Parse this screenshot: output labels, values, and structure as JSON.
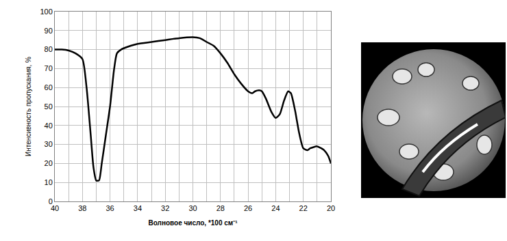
{
  "chart_data": {
    "type": "line",
    "xlabel": "Волновое число, *100 см⁻¹",
    "ylabel": "Интенсивность пропускания, %",
    "x": [
      40,
      39.5,
      39,
      38.5,
      38,
      37.7,
      37.4,
      37.2,
      37,
      36.8,
      36.6,
      36.3,
      36,
      35.7,
      35.5,
      35.2,
      34.5,
      34,
      33,
      32,
      31,
      30,
      29.5,
      29,
      28.5,
      28,
      27.5,
      27,
      26.5,
      26,
      25.7,
      25.5,
      25.2,
      25,
      24.7,
      24.3,
      24,
      23.7,
      23.4,
      23.1,
      22.9,
      22.6,
      22.3,
      22,
      21.7,
      21.5,
      21,
      20.7,
      20.5,
      20.2,
      20
    ],
    "values": [
      80,
      80,
      79.5,
      78,
      75,
      60,
      35,
      18,
      11,
      11,
      20,
      35,
      50,
      70,
      78,
      80,
      82,
      83,
      84,
      85,
      86,
      86.5,
      86,
      84,
      82,
      78,
      73,
      67,
      62,
      58,
      57,
      58,
      58.5,
      58,
      54,
      47,
      44,
      46,
      53,
      58,
      57,
      48,
      36,
      28,
      27,
      28,
      29,
      28,
      27,
      24,
      20
    ],
    "color": "#000000",
    "xlim": [
      40,
      20
    ],
    "xticks": [
      40,
      38,
      36,
      34,
      32,
      30,
      28,
      26,
      24,
      22,
      20
    ],
    "ylim": [
      0,
      100
    ],
    "yticks": [
      0,
      10,
      20,
      30,
      40,
      50,
      60,
      70,
      80,
      90,
      100
    ],
    "grid": true
  }
}
